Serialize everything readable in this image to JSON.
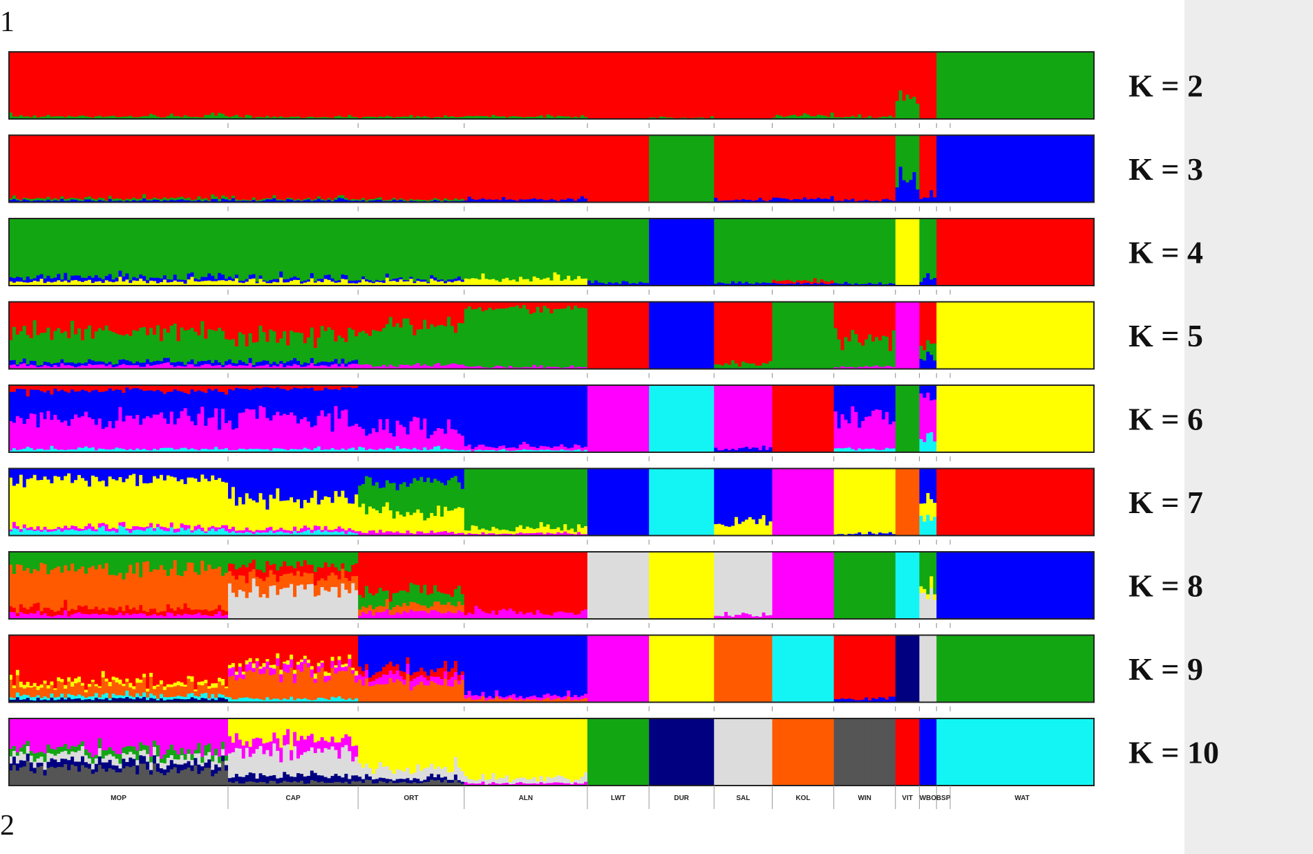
{
  "page_numbers": {
    "top": "1",
    "bottom": "2"
  },
  "chart_data": {
    "type": "stacked-bar (admixture)",
    "title": "",
    "xlabel": "",
    "ylabel": "",
    "ylim": [
      0,
      1
    ],
    "grid": false,
    "populations": [
      {
        "code": "MOP",
        "n": 64
      },
      {
        "code": "CAP",
        "n": 38
      },
      {
        "code": "ORT",
        "n": 31
      },
      {
        "code": "ALN",
        "n": 36
      },
      {
        "code": "LWT",
        "n": 18
      },
      {
        "code": "DUR",
        "n": 19
      },
      {
        "code": "SAL",
        "n": 17
      },
      {
        "code": "KOL",
        "n": 18
      },
      {
        "code": "WIN",
        "n": 18
      },
      {
        "code": "VIT",
        "n": 7
      },
      {
        "code": "WBO",
        "n": 5
      },
      {
        "code": "BSP",
        "n": 4
      },
      {
        "code": "WAT",
        "n": 42
      }
    ],
    "color_names": {
      "red": "#ff0000",
      "green": "#12a612",
      "blue": "#0000ff",
      "yellow": "#ffff00",
      "magenta": "#ff00ff",
      "cyan": "#13f5f5",
      "orange": "#ff5a00",
      "grey": "#dcdcdc",
      "navy": "#000080",
      "darkgrey": "#555555"
    },
    "runs": [
      {
        "label": "K = 2",
        "k": 2,
        "clusters": [
          {
            "MOP": [
              "red",
              0.96,
              "green",
              0.04
            ],
            "CAP": [
              "red",
              0.97,
              "green",
              0.03
            ],
            "ORT": [
              "red",
              0.97,
              "green",
              0.03
            ],
            "ALN": [
              "red",
              0.96,
              "green",
              0.04
            ],
            "LWT": [
              "red",
              1.0
            ],
            "DUR": [
              "red",
              0.98,
              "green",
              0.02
            ],
            "SAL": [
              "red",
              1.0
            ],
            "KOL": [
              "red",
              0.95,
              "green",
              0.05
            ],
            "WIN": [
              "red",
              0.97,
              "green",
              0.03
            ],
            "VIT": [
              "red",
              0.7,
              "green",
              0.3
            ],
            "WBO": [
              "red",
              1.0
            ],
            "BSP": [
              "green",
              1.0
            ],
            "WAT": [
              "green",
              1.0
            ]
          }
        ]
      },
      {
        "label": "K = 3",
        "k": 3,
        "clusters": [
          {
            "MOP": [
              "red",
              0.94,
              "green",
              0.03,
              "blue",
              0.03
            ],
            "CAP": [
              "red",
              0.95,
              "green",
              0.02,
              "blue",
              0.03
            ],
            "ORT": [
              "red",
              0.96,
              "green",
              0.02,
              "blue",
              0.02
            ],
            "ALN": [
              "red",
              0.96,
              "blue",
              0.04
            ],
            "LWT": [
              "red",
              1.0
            ],
            "DUR": [
              "green",
              1.0
            ],
            "SAL": [
              "red",
              0.97,
              "blue",
              0.03
            ],
            "KOL": [
              "red",
              0.95,
              "blue",
              0.05
            ],
            "WIN": [
              "red",
              0.97,
              "blue",
              0.03
            ],
            "VIT": [
              "green",
              0.66,
              "blue",
              0.34
            ],
            "WBO": [
              "red",
              0.92,
              "blue",
              0.08
            ],
            "BSP": [
              "blue",
              1.0
            ],
            "WAT": [
              "blue",
              1.0
            ]
          }
        ]
      },
      {
        "label": "K = 4",
        "k": 4,
        "clusters": [
          {
            "MOP": [
              "green",
              0.88,
              "blue",
              0.06,
              "yellow",
              0.06
            ],
            "CAP": [
              "green",
              0.9,
              "blue",
              0.04,
              "yellow",
              0.06
            ],
            "ORT": [
              "green",
              0.91,
              "blue",
              0.03,
              "yellow",
              0.06
            ],
            "ALN": [
              "green",
              0.9,
              "yellow",
              0.1
            ],
            "LWT": [
              "green",
              0.96,
              "blue",
              0.04
            ],
            "DUR": [
              "blue",
              1.0
            ],
            "SAL": [
              "green",
              0.96,
              "blue",
              0.04
            ],
            "KOL": [
              "green",
              0.93,
              "red",
              0.04,
              "blue",
              0.03
            ],
            "WIN": [
              "green",
              0.97,
              "blue",
              0.03
            ],
            "VIT": [
              "yellow",
              1.0
            ],
            "WBO": [
              "green",
              0.88,
              "blue",
              0.12
            ],
            "BSP": [
              "red",
              1.0
            ],
            "WAT": [
              "red",
              1.0
            ]
          }
        ]
      },
      {
        "label": "K = 5",
        "k": 5,
        "clusters": [
          {
            "MOP": [
              "red",
              0.45,
              "green",
              0.45,
              "blue",
              0.05,
              "magenta",
              0.05
            ],
            "CAP": [
              "red",
              0.5,
              "green",
              0.4,
              "blue",
              0.05,
              "magenta",
              0.05
            ],
            "ORT": [
              "red",
              0.35,
              "green",
              0.6,
              "magenta",
              0.05
            ],
            "ALN": [
              "red",
              0.1,
              "green",
              0.87,
              "magenta",
              0.03
            ],
            "LWT": [
              "red",
              1.0
            ],
            "DUR": [
              "blue",
              1.0
            ],
            "SAL": [
              "red",
              0.92,
              "green",
              0.08
            ],
            "KOL": [
              "green",
              1.0
            ],
            "WIN": [
              "red",
              0.55,
              "green",
              0.42,
              "magenta",
              0.03
            ],
            "VIT": [
              "magenta",
              1.0
            ],
            "WBO": [
              "red",
              0.6,
              "green",
              0.2,
              "blue",
              0.2
            ],
            "BSP": [
              "yellow",
              1.0
            ],
            "WAT": [
              "yellow",
              1.0
            ]
          }
        ]
      },
      {
        "label": "K = 6",
        "k": 6,
        "clusters": [
          {
            "MOP": [
              "red",
              0.08,
              "blue",
              0.4,
              "magenta",
              0.47,
              "cyan",
              0.05
            ],
            "CAP": [
              "red",
              0.05,
              "blue",
              0.45,
              "magenta",
              0.45,
              "cyan",
              0.05
            ],
            "ORT": [
              "blue",
              0.65,
              "magenta",
              0.3,
              "cyan",
              0.05
            ],
            "ALN": [
              "blue",
              0.92,
              "magenta",
              0.05,
              "cyan",
              0.03
            ],
            "LWT": [
              "magenta",
              1.0
            ],
            "DUR": [
              "cyan",
              1.0
            ],
            "SAL": [
              "magenta",
              0.95,
              "blue",
              0.05
            ],
            "KOL": [
              "red",
              1.0
            ],
            "WIN": [
              "blue",
              0.45,
              "magenta",
              0.5,
              "cyan",
              0.05
            ],
            "VIT": [
              "green",
              1.0
            ],
            "WBO": [
              "blue",
              0.15,
              "magenta",
              0.6,
              "cyan",
              0.25
            ],
            "BSP": [
              "yellow",
              1.0
            ],
            "WAT": [
              "yellow",
              1.0
            ]
          }
        ]
      },
      {
        "label": "K = 7",
        "k": 7,
        "clusters": [
          {
            "MOP": [
              "blue",
              0.15,
              "yellow",
              0.72,
              "magenta",
              0.05,
              "cyan",
              0.08
            ],
            "CAP": [
              "blue",
              0.45,
              "yellow",
              0.45,
              "magenta",
              0.05,
              "cyan",
              0.05
            ],
            "ORT": [
              "blue",
              0.2,
              "green",
              0.45,
              "yellow",
              0.3,
              "magenta",
              0.05
            ],
            "ALN": [
              "green",
              0.9,
              "yellow",
              0.07,
              "magenta",
              0.03
            ],
            "LWT": [
              "blue",
              1.0
            ],
            "DUR": [
              "cyan",
              1.0
            ],
            "SAL": [
              "blue",
              0.82,
              "yellow",
              0.18
            ],
            "KOL": [
              "magenta",
              1.0
            ],
            "WIN": [
              "yellow",
              0.97,
              "blue",
              0.03
            ],
            "VIT": [
              "orange",
              1.0
            ],
            "WBO": [
              "blue",
              0.45,
              "yellow",
              0.3,
              "cyan",
              0.25
            ],
            "BSP": [
              "red",
              1.0
            ],
            "WAT": [
              "red",
              1.0
            ]
          }
        ]
      },
      {
        "label": "K = 8",
        "k": 8,
        "clusters": [
          {
            "MOP": [
              "green",
              0.25,
              "orange",
              0.6,
              "red",
              0.08,
              "magenta",
              0.07
            ],
            "CAP": [
              "green",
              0.2,
              "red",
              0.15,
              "orange",
              0.2,
              "grey",
              0.45
            ],
            "ORT": [
              "red",
              0.6,
              "green",
              0.2,
              "orange",
              0.1,
              "magenta",
              0.1
            ],
            "ALN": [
              "red",
              0.9,
              "magenta",
              0.1
            ],
            "LWT": [
              "grey",
              1.0
            ],
            "DUR": [
              "yellow",
              1.0
            ],
            "SAL": [
              "grey",
              0.95,
              "magenta",
              0.05
            ],
            "KOL": [
              "magenta",
              1.0
            ],
            "WIN": [
              "green",
              1.0
            ],
            "VIT": [
              "cyan",
              1.0
            ],
            "WBO": [
              "green",
              0.5,
              "yellow",
              0.1,
              "grey",
              0.4
            ],
            "BSP": [
              "blue",
              1.0
            ],
            "WAT": [
              "blue",
              1.0
            ]
          }
        ]
      },
      {
        "label": "K = 9",
        "k": 9,
        "clusters": [
          {
            "MOP": [
              "red",
              0.7,
              "yellow",
              0.05,
              "orange",
              0.15,
              "cyan",
              0.05,
              "navy",
              0.05
            ],
            "CAP": [
              "red",
              0.4,
              "yellow",
              0.05,
              "magenta",
              0.1,
              "orange",
              0.4,
              "cyan",
              0.05
            ],
            "ORT": [
              "blue",
              0.5,
              "red",
              0.1,
              "magenta",
              0.1,
              "orange",
              0.3
            ],
            "ALN": [
              "blue",
              0.9,
              "magenta",
              0.05,
              "orange",
              0.05
            ],
            "LWT": [
              "magenta",
              1.0
            ],
            "DUR": [
              "yellow",
              1.0
            ],
            "SAL": [
              "orange",
              1.0
            ],
            "KOL": [
              "cyan",
              1.0
            ],
            "WIN": [
              "red",
              0.95,
              "blue",
              0.05
            ],
            "VIT": [
              "navy",
              1.0
            ],
            "WBO": [
              "grey",
              1.0
            ],
            "BSP": [
              "green",
              1.0
            ],
            "WAT": [
              "green",
              1.0
            ]
          }
        ]
      },
      {
        "label": "K = 10",
        "k": 10,
        "clusters": [
          {
            "MOP": [
              "magenta",
              0.45,
              "green",
              0.1,
              "grey",
              0.1,
              "navy",
              0.1,
              "darkgrey",
              0.25
            ],
            "CAP": [
              "yellow",
              0.3,
              "magenta",
              0.2,
              "grey",
              0.35,
              "navy",
              0.1,
              "darkgrey",
              0.05
            ],
            "ORT": [
              "yellow",
              0.75,
              "grey",
              0.15,
              "navy",
              0.05,
              "darkgrey",
              0.05
            ],
            "ALN": [
              "yellow",
              0.9,
              "grey",
              0.07,
              "magenta",
              0.03
            ],
            "LWT": [
              "green",
              1.0
            ],
            "DUR": [
              "navy",
              1.0
            ],
            "SAL": [
              "grey",
              1.0
            ],
            "KOL": [
              "orange",
              1.0
            ],
            "WIN": [
              "darkgrey",
              1.0
            ],
            "VIT": [
              "red",
              1.0
            ],
            "WBO": [
              "blue",
              1.0
            ],
            "BSP": [
              "cyan",
              1.0
            ],
            "WAT": [
              "cyan",
              1.0
            ]
          }
        ]
      }
    ]
  }
}
